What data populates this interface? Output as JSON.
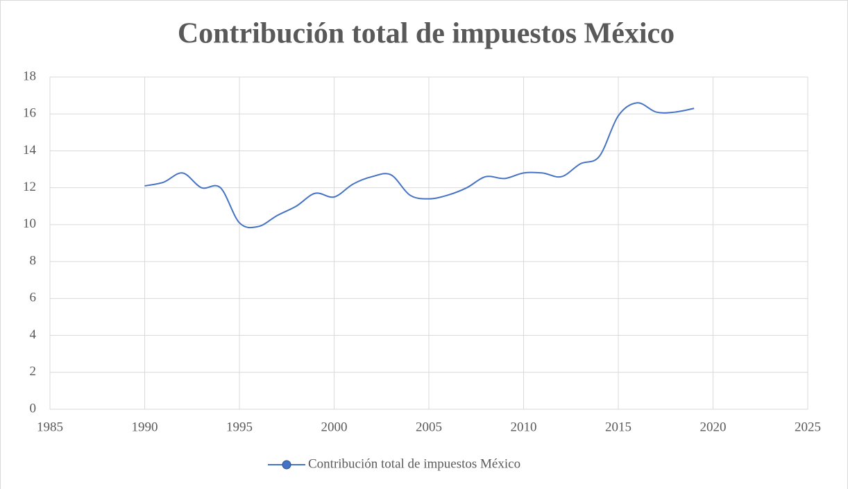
{
  "chart_data": {
    "type": "line",
    "title": "Contribución total de impuestos México",
    "x": [
      1990,
      1991,
      1992,
      1993,
      1994,
      1995,
      1996,
      1997,
      1998,
      1999,
      2000,
      2001,
      2002,
      2003,
      2004,
      2005,
      2006,
      2007,
      2008,
      2009,
      2010,
      2011,
      2012,
      2013,
      2014,
      2015,
      2016,
      2017,
      2018,
      2019
    ],
    "series": [
      {
        "name": "Contribución total de impuestos México",
        "color": "#4472c4",
        "values": [
          12.1,
          12.3,
          12.8,
          12.0,
          12.0,
          10.1,
          9.9,
          10.5,
          11.0,
          11.7,
          11.5,
          12.2,
          12.6,
          12.7,
          11.6,
          11.4,
          11.6,
          12.0,
          12.6,
          12.5,
          12.8,
          12.8,
          12.6,
          13.3,
          13.7,
          15.9,
          16.6,
          16.1,
          16.1,
          16.3
        ]
      }
    ],
    "xlim": [
      1985,
      2025
    ],
    "xticks": [
      1985,
      1990,
      1995,
      2000,
      2005,
      2010,
      2015,
      2020,
      2025
    ],
    "ylim": [
      0,
      18
    ],
    "yticks": [
      0,
      2,
      4,
      6,
      8,
      10,
      12,
      14,
      16,
      18
    ],
    "grid": true,
    "smooth": true,
    "legend": "bottom"
  }
}
